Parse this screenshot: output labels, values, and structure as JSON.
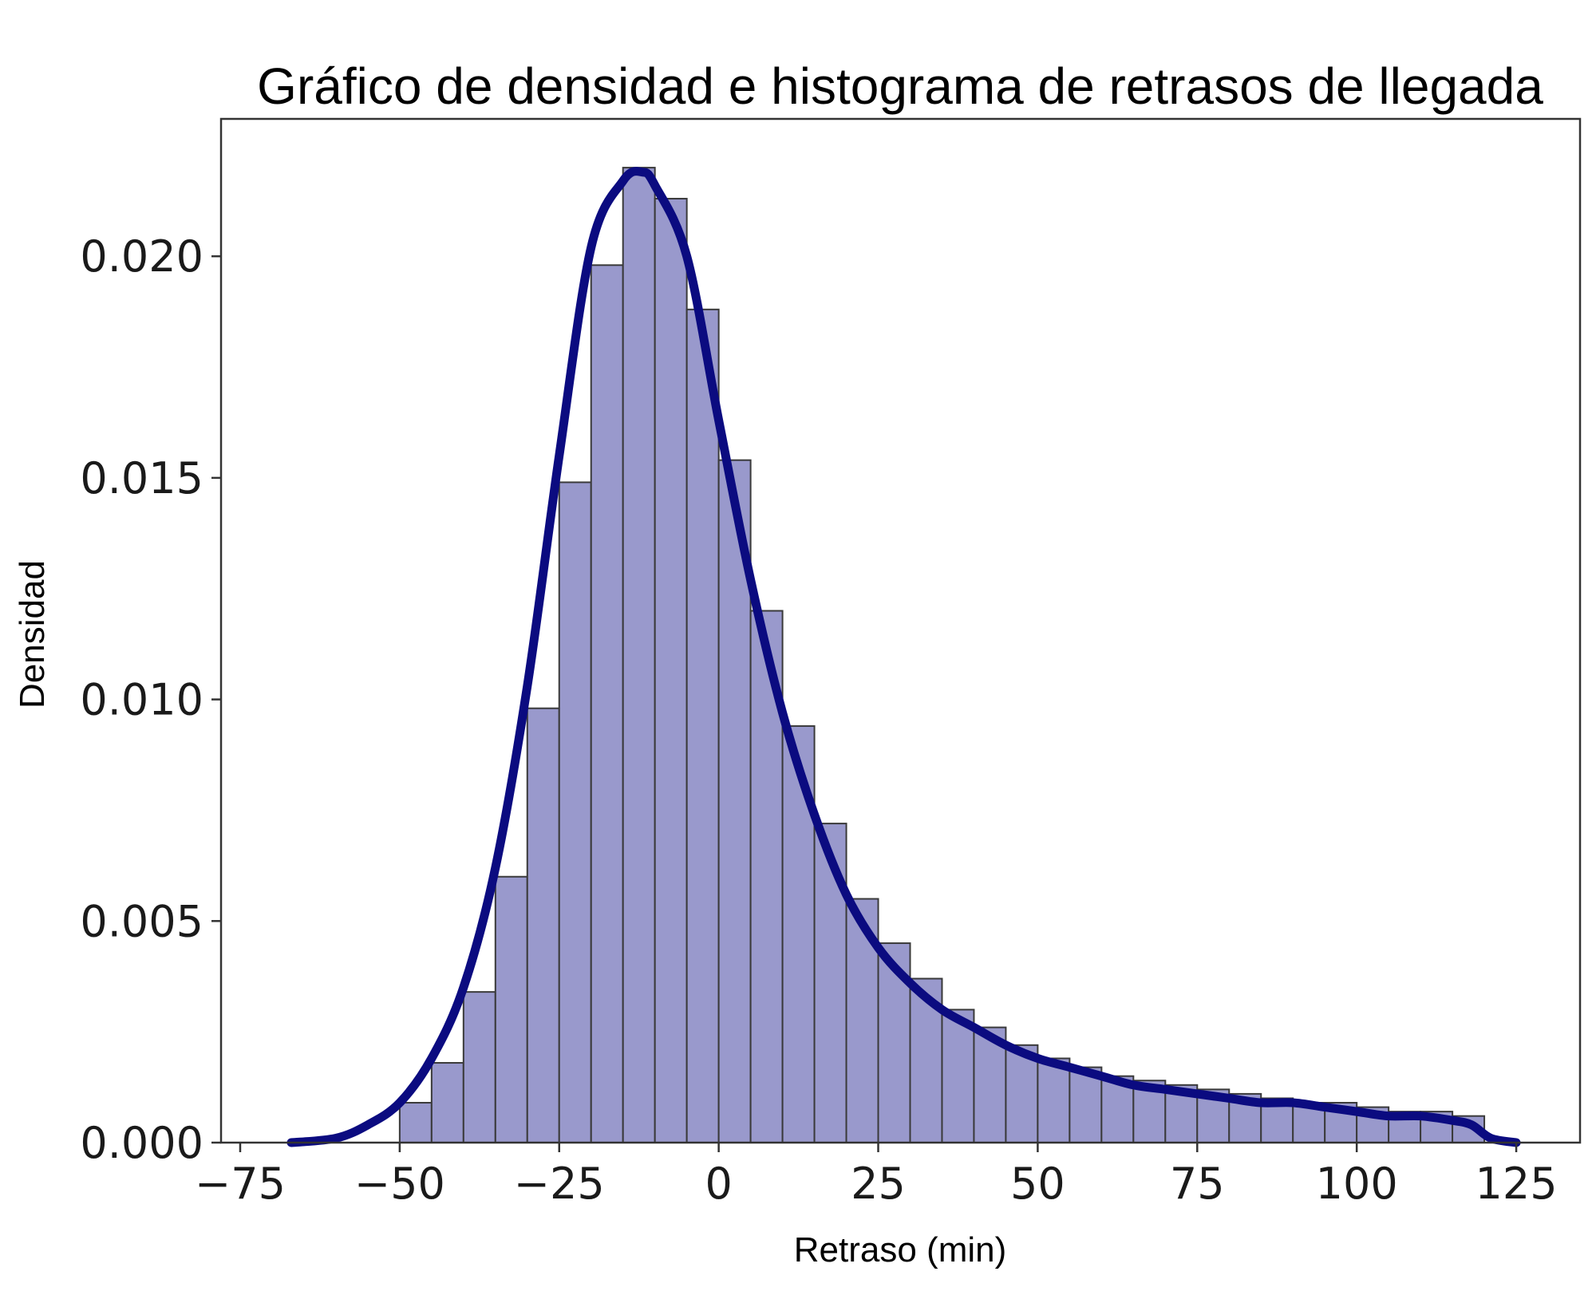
{
  "chart_data": {
    "type": "bar",
    "title": "Gráfico de densidad e histograma de retrasos de llegada",
    "xlabel": "Retraso (min)",
    "ylabel": "Densidad",
    "xlim": [
      -78,
      135
    ],
    "ylim": [
      0,
      0.0231
    ],
    "grid": false,
    "x_ticks": [
      {
        "value": -75,
        "label": "−75"
      },
      {
        "value": -50,
        "label": "−50"
      },
      {
        "value": -25,
        "label": "−25"
      },
      {
        "value": 0,
        "label": "0"
      },
      {
        "value": 25,
        "label": "25"
      },
      {
        "value": 50,
        "label": "50"
      },
      {
        "value": 75,
        "label": "75"
      },
      {
        "value": 100,
        "label": "100"
      },
      {
        "value": 125,
        "label": "125"
      }
    ],
    "y_ticks": [
      {
        "value": 0.0,
        "label": "0.000"
      },
      {
        "value": 0.005,
        "label": "0.005"
      },
      {
        "value": 0.01,
        "label": "0.010"
      },
      {
        "value": 0.015,
        "label": "0.015"
      },
      {
        "value": 0.02,
        "label": "0.020"
      }
    ],
    "histogram": {
      "bin_width": 5,
      "bin_starts": [
        -50,
        -45,
        -40,
        -35,
        -30,
        -25,
        -20,
        -15,
        -10,
        -5,
        0,
        5,
        10,
        15,
        20,
        25,
        30,
        35,
        40,
        45,
        50,
        55,
        60,
        65,
        70,
        75,
        80,
        85,
        90,
        95,
        100,
        105,
        110,
        115
      ],
      "values": [
        0.0009,
        0.0018,
        0.0034,
        0.006,
        0.0098,
        0.0149,
        0.0198,
        0.022,
        0.0213,
        0.0188,
        0.0154,
        0.012,
        0.0094,
        0.0072,
        0.0055,
        0.0045,
        0.0037,
        0.003,
        0.0026,
        0.0022,
        0.0019,
        0.0017,
        0.0015,
        0.0014,
        0.0013,
        0.0012,
        0.0011,
        0.001,
        0.0009,
        0.0009,
        0.0008,
        0.0007,
        0.0007,
        0.0006
      ]
    },
    "kde": {
      "x": [
        -67,
        -60,
        -55,
        -50,
        -45,
        -40,
        -35,
        -30,
        -25,
        -20,
        -15,
        -12,
        -10,
        -5,
        0,
        5,
        10,
        15,
        20,
        25,
        30,
        35,
        40,
        45,
        50,
        55,
        60,
        65,
        70,
        75,
        80,
        85,
        90,
        95,
        100,
        105,
        110,
        115,
        118,
        121,
        125
      ],
      "y": [
        0.0,
        0.0001,
        0.0004,
        0.0009,
        0.0019,
        0.0035,
        0.0062,
        0.0103,
        0.0155,
        0.0202,
        0.0217,
        0.0219,
        0.0216,
        0.02,
        0.0163,
        0.0127,
        0.0097,
        0.0074,
        0.0056,
        0.0044,
        0.0036,
        0.003,
        0.0026,
        0.0022,
        0.0019,
        0.0017,
        0.0015,
        0.0013,
        0.0012,
        0.0011,
        0.001,
        0.0009,
        0.0009,
        0.0008,
        0.0007,
        0.0006,
        0.0006,
        0.0005,
        0.0004,
        0.0001,
        0.0
      ]
    }
  }
}
